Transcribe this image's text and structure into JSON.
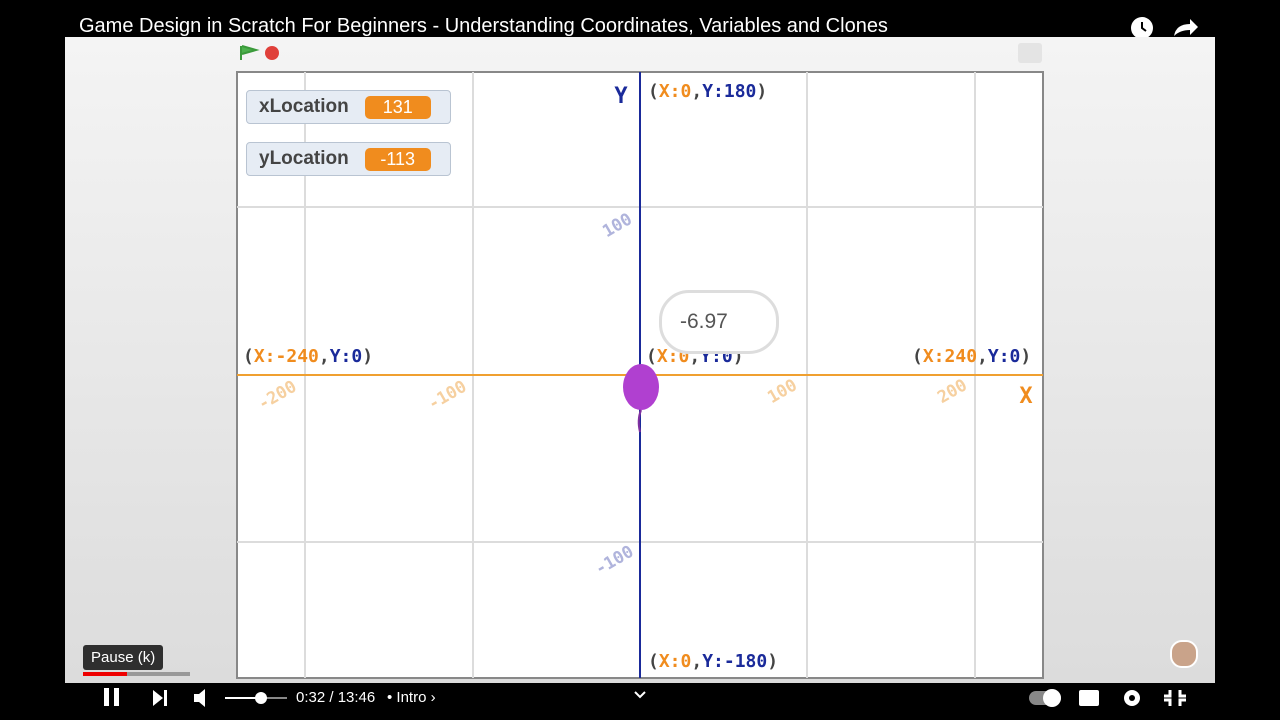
{
  "header": {
    "title": "Game Design in Scratch For Beginners - Understanding Coordinates, Variables and Clones"
  },
  "monitors": [
    {
      "name": "xLocation",
      "value": "131"
    },
    {
      "name": "yLocation",
      "value": "-113"
    }
  ],
  "axes": {
    "y_label": "Y",
    "x_label": "X"
  },
  "coordinate_labels": [
    {
      "parts": [
        "(",
        "X:0",
        ",",
        "Y:180",
        ")"
      ]
    },
    {
      "parts": [
        "(",
        "X:-240",
        ",",
        "Y:0",
        ")"
      ]
    },
    {
      "parts": [
        "(",
        "X:0",
        ",",
        "Y:0",
        ")"
      ]
    },
    {
      "parts": [
        "(",
        "X:240",
        ",",
        "Y:0",
        ")"
      ]
    },
    {
      "parts": [
        "(",
        "X:0",
        ",",
        "Y:-180",
        ")"
      ]
    }
  ],
  "x_tick_labels": [
    "-200",
    "-100",
    "100",
    "200"
  ],
  "y_tick_labels": [
    "100",
    "-100"
  ],
  "sprite_say": "-6.97",
  "player": {
    "tooltip": "Pause (k)",
    "time": "0:32 / 13:46",
    "chapter": "• Intro ›"
  }
}
